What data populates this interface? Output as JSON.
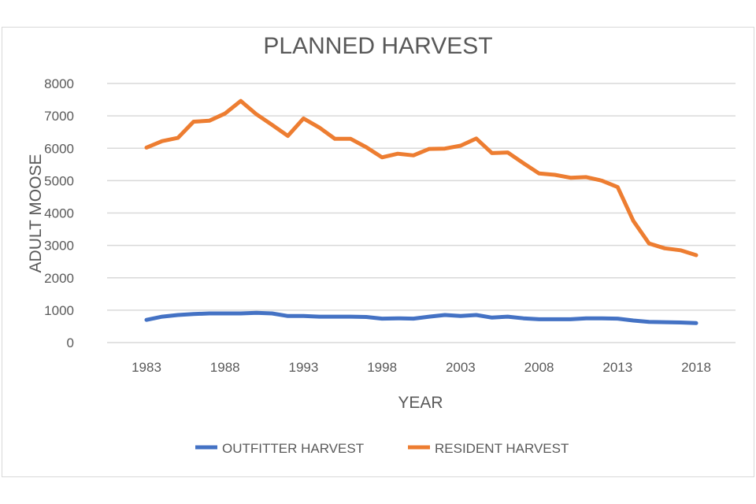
{
  "chart_data": {
    "type": "line",
    "title": "PLANNED HARVEST",
    "xlabel": "YEAR",
    "ylabel": "ADULT MOOSE",
    "x": [
      1983,
      1984,
      1985,
      1986,
      1987,
      1988,
      1989,
      1990,
      1991,
      1992,
      1993,
      1994,
      1995,
      1996,
      1997,
      1998,
      1999,
      2000,
      2001,
      2002,
      2003,
      2004,
      2005,
      2006,
      2007,
      2008,
      2009,
      2010,
      2011,
      2012,
      2013,
      2014,
      2015,
      2016,
      2017,
      2018
    ],
    "xticks": [
      "1983",
      "1988",
      "1993",
      "1998",
      "2003",
      "2008",
      "2013",
      "2018"
    ],
    "ylim": [
      0,
      8000
    ],
    "yticks": [
      "0",
      "1000",
      "2000",
      "3000",
      "4000",
      "5000",
      "6000",
      "7000",
      "8000"
    ],
    "grid": true,
    "legend_position": "bottom",
    "series": [
      {
        "name": "OUTFITTER HARVEST",
        "color": "#4472c4",
        "values": [
          700,
          800,
          850,
          880,
          900,
          900,
          900,
          920,
          900,
          820,
          820,
          800,
          800,
          800,
          790,
          740,
          750,
          740,
          800,
          850,
          820,
          850,
          770,
          800,
          750,
          720,
          720,
          720,
          750,
          750,
          740,
          680,
          640,
          630,
          620,
          600
        ]
      },
      {
        "name": "RESIDENT HARVEST",
        "color": "#ed7d31",
        "values": [
          6020,
          6220,
          6320,
          6820,
          6850,
          7070,
          7460,
          7050,
          6720,
          6380,
          6920,
          6640,
          6290,
          6290,
          6030,
          5720,
          5830,
          5780,
          5980,
          5990,
          6080,
          6300,
          5850,
          5870,
          5540,
          5220,
          5180,
          5090,
          5110,
          5000,
          4800,
          3760,
          3060,
          2910,
          2850,
          2700
        ]
      }
    ]
  }
}
